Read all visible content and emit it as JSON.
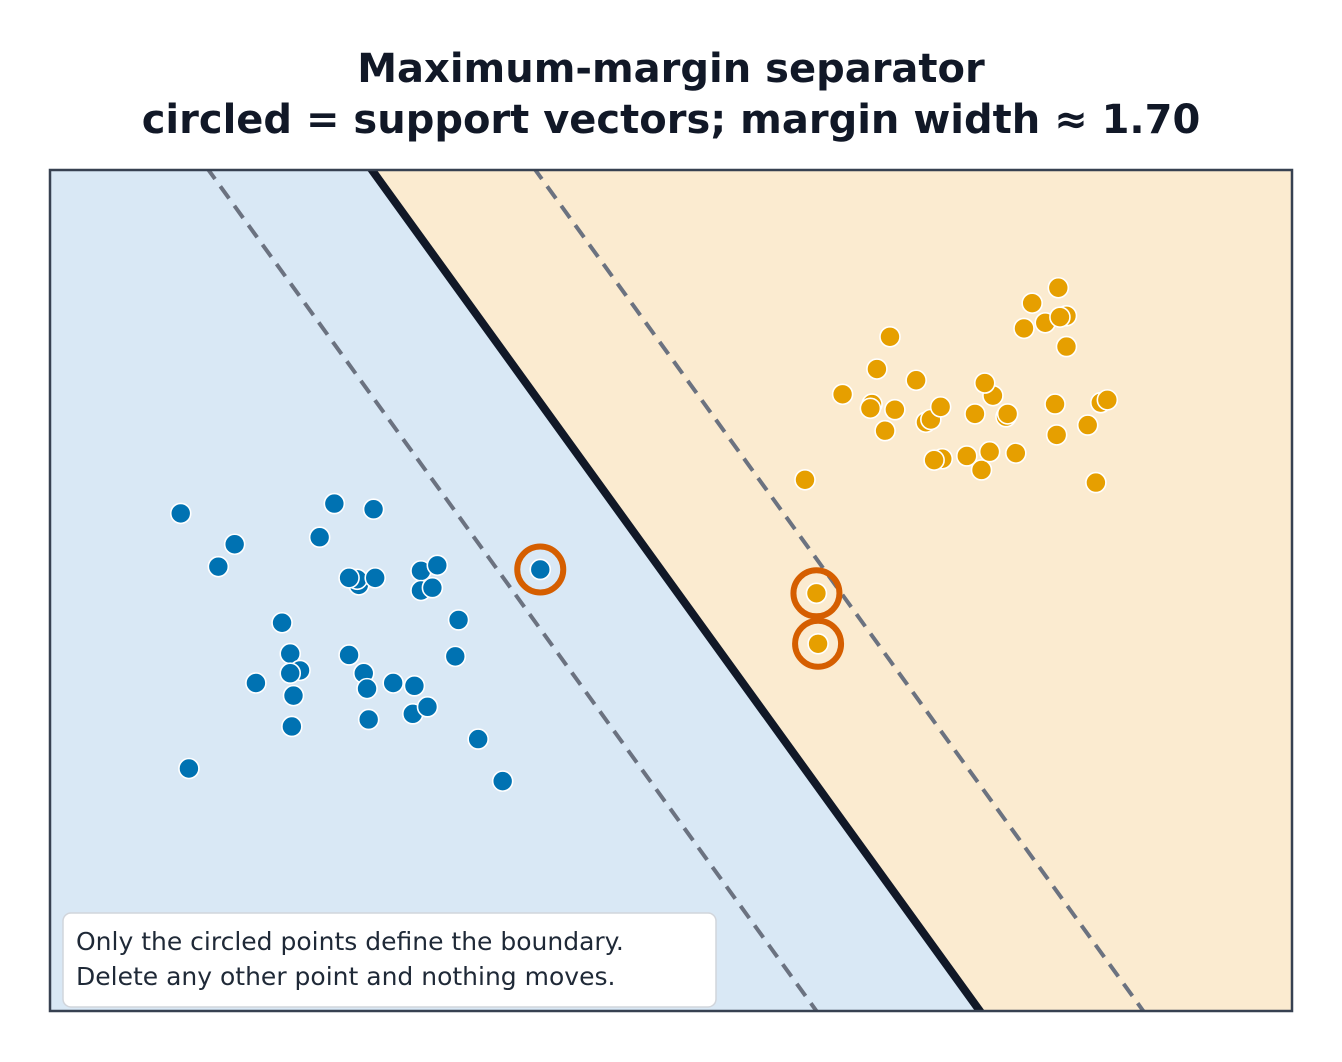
{
  "chart_data": {
    "type": "scatter",
    "title": "Maximum-margin separator",
    "subtitle": "circled = support vectors; margin width ≈ 1.70",
    "xlabel": "",
    "ylabel": "",
    "xlim": [
      -3.6,
      4.0
    ],
    "ylim": [
      -3.0,
      3.0
    ],
    "grid": false,
    "axes_ticks": false,
    "decision_boundary": {
      "w": [
        1.0,
        0.62
      ],
      "b": -0.23,
      "style": "solid"
    },
    "margins": {
      "values": [
        -1,
        1
      ],
      "style": "dashed"
    },
    "regions": {
      "negative_color": "#d9e8f5",
      "positive_color": "#fbebd0"
    },
    "series": [
      {
        "class": "blue",
        "color": "#0072b2",
        "points": [
          [
            -2.8,
            0.55
          ],
          [
            -2.47,
            0.33
          ],
          [
            -2.57,
            0.17
          ],
          [
            -2.18,
            -0.23
          ],
          [
            -1.95,
            0.38
          ],
          [
            -1.86,
            0.62
          ],
          [
            -1.71,
            0.04
          ],
          [
            -1.72,
            0.08
          ],
          [
            -1.77,
            0.09
          ],
          [
            -1.62,
            0.58
          ],
          [
            -1.61,
            0.09
          ],
          [
            -1.33,
            0.14
          ],
          [
            -1.33,
            0.0
          ],
          [
            -1.26,
            0.02
          ],
          [
            -1.23,
            0.18
          ],
          [
            -1.1,
            -0.21
          ],
          [
            -1.12,
            -0.47
          ],
          [
            -2.34,
            -0.66
          ],
          [
            -2.13,
            -0.45
          ],
          [
            -2.07,
            -0.57
          ],
          [
            -2.13,
            -0.59
          ],
          [
            -2.11,
            -0.75
          ],
          [
            -1.77,
            -0.46
          ],
          [
            -1.68,
            -0.59
          ],
          [
            -1.5,
            -0.66
          ],
          [
            -1.37,
            -0.68
          ],
          [
            -1.38,
            -0.88
          ],
          [
            -1.29,
            -0.83
          ],
          [
            -1.66,
            -0.7
          ],
          [
            -1.65,
            -0.92
          ],
          [
            -2.12,
            -0.97
          ],
          [
            -2.75,
            -1.27
          ],
          [
            -0.98,
            -1.06
          ],
          [
            -0.83,
            -1.36
          ],
          [
            -0.6,
            0.15
          ]
        ]
      },
      {
        "class": "orange",
        "color": "#e69f00",
        "points": [
          [
            1.09,
            -0.02
          ],
          [
            1.1,
            -0.38
          ],
          [
            1.02,
            0.79
          ],
          [
            1.25,
            1.4
          ],
          [
            1.46,
            1.58
          ],
          [
            1.43,
            1.33
          ],
          [
            1.51,
            1.14
          ],
          [
            1.7,
            1.5
          ],
          [
            1.76,
            1.2
          ],
          [
            1.79,
            1.22
          ],
          [
            1.85,
            1.31
          ],
          [
            1.54,
            1.81
          ],
          [
            2.49,
            1.91
          ],
          [
            2.57,
            2.16
          ],
          [
            2.62,
            1.96
          ],
          [
            2.58,
            1.95
          ],
          [
            2.62,
            1.74
          ],
          [
            2.56,
            1.11
          ],
          [
            2.36,
            1.87
          ],
          [
            2.41,
            2.05
          ],
          [
            2.06,
            1.26
          ],
          [
            2.01,
            0.96
          ],
          [
            2.1,
            0.86
          ],
          [
            2.55,
            1.33
          ],
          [
            2.8,
            0.77
          ],
          [
            2.31,
            0.98
          ],
          [
            2.15,
            0.99
          ],
          [
            2.83,
            1.34
          ],
          [
            2.75,
            1.18
          ],
          [
            2.87,
            1.36
          ],
          [
            2.17,
            1.39
          ],
          [
            2.12,
            1.48
          ],
          [
            2.25,
            1.24
          ],
          [
            2.26,
            1.26
          ],
          [
            1.86,
            0.94
          ],
          [
            1.81,
            0.93
          ],
          [
            1.57,
            1.29
          ],
          [
            1.42,
            1.3
          ]
        ]
      }
    ],
    "support_vectors": [
      [
        1.09,
        -0.02
      ],
      [
        1.1,
        -0.38
      ],
      [
        -0.6,
        0.15
      ]
    ],
    "annotation": [
      "Only the circled points define the boundary.",
      "Delete any other point and nothing moves."
    ]
  }
}
